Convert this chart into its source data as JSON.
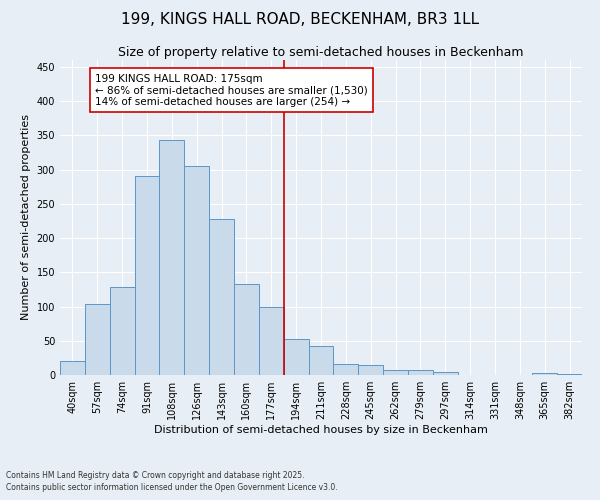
{
  "title": "199, KINGS HALL ROAD, BECKENHAM, BR3 1LL",
  "subtitle": "Size of property relative to semi-detached houses in Beckenham",
  "xlabel": "Distribution of semi-detached houses by size in Beckenham",
  "ylabel": "Number of semi-detached properties",
  "categories": [
    "40sqm",
    "57sqm",
    "74sqm",
    "91sqm",
    "108sqm",
    "126sqm",
    "143sqm",
    "160sqm",
    "177sqm",
    "194sqm",
    "211sqm",
    "228sqm",
    "245sqm",
    "262sqm",
    "279sqm",
    "297sqm",
    "314sqm",
    "331sqm",
    "348sqm",
    "365sqm",
    "382sqm"
  ],
  "values": [
    20,
    103,
    128,
    290,
    343,
    305,
    228,
    133,
    100,
    53,
    42,
    16,
    15,
    8,
    7,
    4,
    0,
    0,
    0,
    3,
    2
  ],
  "bar_color": "#c9daea",
  "bar_edge_color": "#5b96c8",
  "vline_x": 8.5,
  "vline_color": "#cc0000",
  "annotation_text": "199 KINGS HALL ROAD: 175sqm\n← 86% of semi-detached houses are smaller (1,530)\n14% of semi-detached houses are larger (254) →",
  "annotation_box_color": "#ffffff",
  "annotation_box_edge": "#cc0000",
  "ylim": [
    0,
    460
  ],
  "yticks": [
    0,
    50,
    100,
    150,
    200,
    250,
    300,
    350,
    400,
    450
  ],
  "plot_background": "#e8eef5",
  "footer1": "Contains HM Land Registry data © Crown copyright and database right 2025.",
  "footer2": "Contains public sector information licensed under the Open Government Licence v3.0.",
  "title_fontsize": 11,
  "subtitle_fontsize": 9,
  "tick_fontsize": 7,
  "ylabel_fontsize": 8,
  "xlabel_fontsize": 8,
  "annotation_fontsize": 7.5,
  "footer_fontsize": 5.5
}
